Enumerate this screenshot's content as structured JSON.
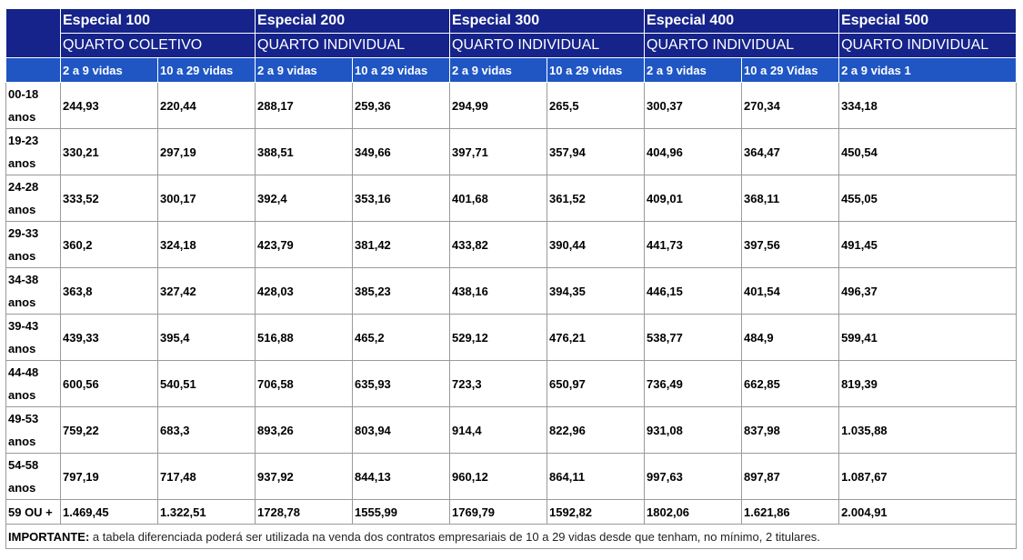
{
  "plans": [
    {
      "name": "Especial 100",
      "room": "QUARTO COLETIVO"
    },
    {
      "name": "Especial 200",
      "room": "QUARTO INDIVIDUAL"
    },
    {
      "name": "Especial 300",
      "room": "QUARTO INDIVIDUAL"
    },
    {
      "name": "Especial 400",
      "room": "QUARTO INDIVIDUAL"
    },
    {
      "name": "Especial 500",
      "room": "QUARTO INDIVIDUAL"
    }
  ],
  "subheaders": [
    "2 a 9 vidas",
    "10 a 29 vidas",
    "2 a 9 vidas",
    "10 a 29 vidas",
    "2 a 9 vidas",
    "10 a 29 vidas",
    "2 a 9 vidas",
    "10 a 29 Vidas",
    "2 a 9 vidas 1"
  ],
  "rows": [
    {
      "age": "00-18 anos",
      "values": [
        "244,93",
        "220,44",
        "288,17",
        "259,36",
        "294,99",
        "265,5",
        "300,37",
        "270,34",
        "334,18"
      ]
    },
    {
      "age": "19-23 anos",
      "values": [
        "330,21",
        "297,19",
        "388,51",
        "349,66",
        "397,71",
        "357,94",
        "404,96",
        "364,47",
        "450,54"
      ]
    },
    {
      "age": "24-28 anos",
      "values": [
        "333,52",
        "300,17",
        "392,4",
        "353,16",
        "401,68",
        "361,52",
        "409,01",
        "368,11",
        "455,05"
      ]
    },
    {
      "age": "29-33 anos",
      "values": [
        "360,2",
        "324,18",
        "423,79",
        "381,42",
        "433,82",
        "390,44",
        "441,73",
        "397,56",
        "491,45"
      ]
    },
    {
      "age": "34-38 anos",
      "values": [
        "363,8",
        "327,42",
        "428,03",
        "385,23",
        "438,16",
        "394,35",
        "446,15",
        "401,54",
        "496,37"
      ]
    },
    {
      "age": "39-43 anos",
      "values": [
        "439,33",
        "395,4",
        "516,88",
        "465,2",
        "529,12",
        "476,21",
        "538,77",
        "484,9",
        "599,41"
      ]
    },
    {
      "age": "44-48 anos",
      "values": [
        "600,56",
        "540,51",
        "706,58",
        "635,93",
        "723,3",
        "650,97",
        "736,49",
        "662,85",
        "819,39"
      ]
    },
    {
      "age": "49-53 anos",
      "values": [
        "759,22",
        "683,3",
        "893,26",
        "803,94",
        "914,4",
        "822,96",
        "931,08",
        "837,98",
        "1.035,88"
      ]
    },
    {
      "age": "54-58 anos",
      "values": [
        "797,19",
        "717,48",
        "937,92",
        "844,13",
        "960,12",
        "864,11",
        "997,63",
        "897,87",
        "1.087,67"
      ]
    },
    {
      "age": "59 OU +",
      "values": [
        "1.469,45",
        "1.322,51",
        "1728,78",
        "1555,99",
        "1769,79",
        "1592,82",
        "1802,06",
        "1.621,86",
        "2.004,91"
      ]
    }
  ],
  "note": {
    "label": "IMPORTANTE:",
    "text": " a tabela diferenciada poderá ser utilizada na venda dos contratos empresariais de 10 a 29 vidas desde que tenham, no mínimo, 2 titulares."
  },
  "colors": {
    "header_dark": "#15238a",
    "header_light": "#1f56c4",
    "border": "#9a9a9a"
  }
}
